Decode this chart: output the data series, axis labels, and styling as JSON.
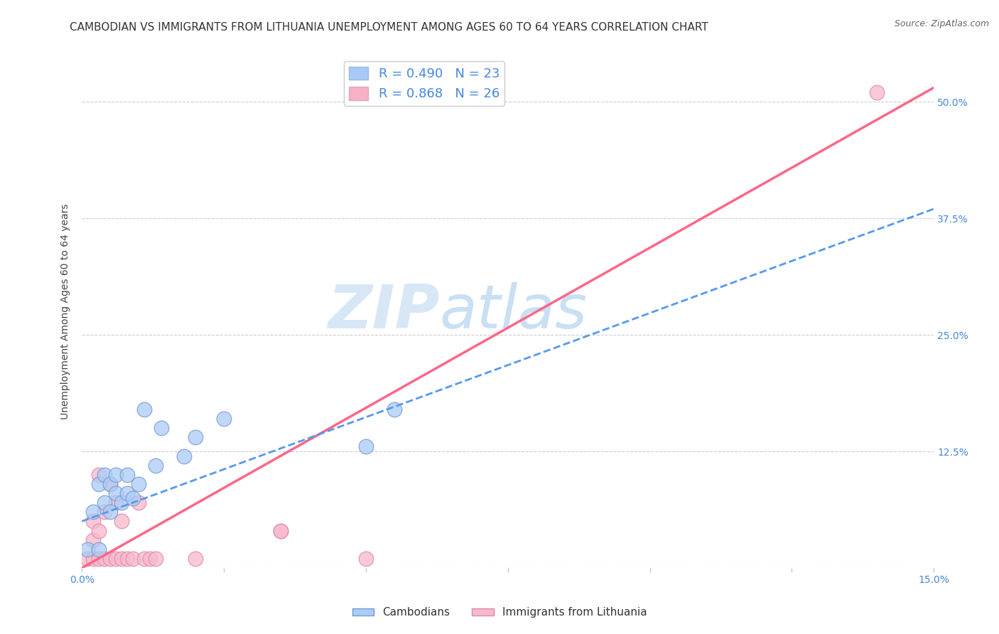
{
  "title": "CAMBODIAN VS IMMIGRANTS FROM LITHUANIA UNEMPLOYMENT AMONG AGES 60 TO 64 YEARS CORRELATION CHART",
  "source": "Source: ZipAtlas.com",
  "ylabel": "Unemployment Among Ages 60 to 64 years",
  "xmin": 0.0,
  "xmax": 0.15,
  "ymin": 0.0,
  "ymax": 0.55,
  "xtick_positions": [
    0.0,
    0.025,
    0.05,
    0.075,
    0.1,
    0.125,
    0.15
  ],
  "xticklabels": [
    "0.0%",
    "",
    "",
    "",
    "",
    "",
    "15.0%"
  ],
  "ytick_positions": [
    0.0,
    0.125,
    0.25,
    0.375,
    0.5
  ],
  "yticklabels": [
    "",
    "12.5%",
    "25.0%",
    "37.5%",
    "50.0%"
  ],
  "legend_entries": [
    {
      "label": "R = 0.490   N = 23",
      "color": "#a8c8f8"
    },
    {
      "label": "R = 0.868   N = 26",
      "color": "#f8b0c8"
    }
  ],
  "cambodian_scatter_x": [
    0.001,
    0.002,
    0.003,
    0.003,
    0.004,
    0.004,
    0.005,
    0.005,
    0.006,
    0.006,
    0.007,
    0.008,
    0.008,
    0.009,
    0.01,
    0.011,
    0.013,
    0.014,
    0.018,
    0.02,
    0.025,
    0.05,
    0.055
  ],
  "cambodian_scatter_y": [
    0.02,
    0.06,
    0.02,
    0.09,
    0.07,
    0.1,
    0.06,
    0.09,
    0.08,
    0.1,
    0.07,
    0.08,
    0.1,
    0.075,
    0.09,
    0.17,
    0.11,
    0.15,
    0.12,
    0.14,
    0.16,
    0.13,
    0.17
  ],
  "lithuania_scatter_x": [
    0.001,
    0.002,
    0.002,
    0.002,
    0.003,
    0.003,
    0.003,
    0.004,
    0.004,
    0.005,
    0.005,
    0.006,
    0.006,
    0.007,
    0.007,
    0.008,
    0.009,
    0.01,
    0.011,
    0.012,
    0.013,
    0.02,
    0.035,
    0.035,
    0.05,
    0.14
  ],
  "lithuania_scatter_y": [
    0.01,
    0.01,
    0.03,
    0.05,
    0.01,
    0.04,
    0.1,
    0.01,
    0.06,
    0.01,
    0.09,
    0.01,
    0.07,
    0.01,
    0.05,
    0.01,
    0.01,
    0.07,
    0.01,
    0.01,
    0.01,
    0.01,
    0.04,
    0.04,
    0.01,
    0.51
  ],
  "cambodian_line_x0": 0.0,
  "cambodian_line_x1": 0.15,
  "cambodian_line_y0": 0.05,
  "cambodian_line_y1": 0.385,
  "cambodian_line_color": "#5599ee",
  "lithuania_line_x0": 0.0,
  "lithuania_line_x1": 0.15,
  "lithuania_line_y0": 0.0,
  "lithuania_line_y1": 0.515,
  "lithuania_line_color": "#ff6688",
  "background_color": "#ffffff",
  "scatter_cambodian_color": "#aaccf8",
  "scatter_cambodian_edge": "#7799cc",
  "scatter_lithuania_color": "#f8b8cc",
  "scatter_lithuania_edge": "#dd88aa",
  "watermark_part1": "ZIP",
  "watermark_part2": "atlas",
  "title_fontsize": 11,
  "axis_label_fontsize": 10,
  "tick_fontsize": 10,
  "legend_fontsize": 13,
  "source_fontsize": 9
}
